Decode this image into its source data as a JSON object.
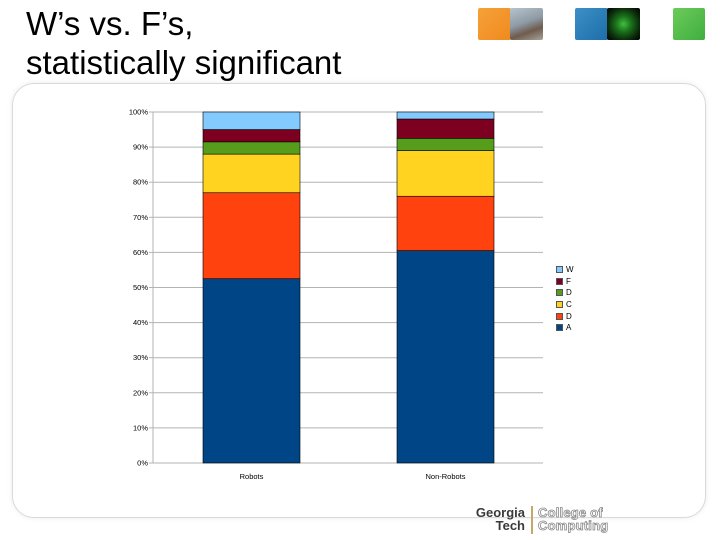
{
  "slide": {
    "title_line1": "W’s vs. F’s,",
    "title_line2": "statistically significant"
  },
  "header_thumbnails": [
    "orange-tile",
    "campus-photo",
    "blue-tile",
    "network-photo",
    "green-tile"
  ],
  "logo": {
    "line1": "Georgia",
    "line2": "Tech",
    "dept_line1": "College of",
    "dept_line2": "Computing"
  },
  "chart_data": {
    "type": "bar",
    "stacked": true,
    "normalized": true,
    "categories": [
      "Robots",
      "Non-Robots"
    ],
    "yticks": [
      "0%",
      "10%",
      "20%",
      "30%",
      "40%",
      "50%",
      "60%",
      "70%",
      "80%",
      "90%",
      "100%"
    ],
    "ylim": [
      0,
      100
    ],
    "grid": true,
    "legend_position": "right",
    "series": [
      {
        "name": "A",
        "color": "#004586",
        "values": [
          52.5,
          60.5
        ]
      },
      {
        "name": "D",
        "color": "#ff420e",
        "values": [
          24.5,
          15.5
        ]
      },
      {
        "name": "C",
        "color": "#ffd320",
        "values": [
          11,
          13
        ]
      },
      {
        "name": "D",
        "color": "#579d1c",
        "values": [
          3.5,
          3.5
        ]
      },
      {
        "name": "F",
        "color": "#7e0021",
        "values": [
          3.5,
          5.5
        ]
      },
      {
        "name": "W",
        "color": "#83caff",
        "values": [
          5,
          2
        ]
      }
    ]
  }
}
